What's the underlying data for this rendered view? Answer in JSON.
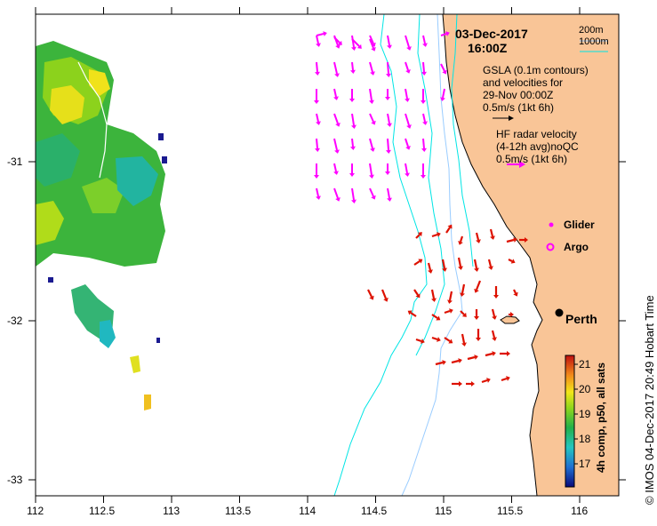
{
  "header": {
    "date": "03-Dec-2017",
    "time": "16:00Z"
  },
  "legend": {
    "depth_200": "200m",
    "depth_1000": "1000m",
    "gsla_line1": "GSLA (0.1m contours)",
    "gsla_line2": "and velocities for",
    "gsla_line3": "29-Nov 00:00Z",
    "gsla_scale": "0.5m/s (1kt 6h)",
    "hf_line1": "HF radar velocity",
    "hf_line2": "(4-12h avg)noQC",
    "hf_scale": "0.5m/s (1kt 6h)",
    "glider": "Glider",
    "argo": "Argo"
  },
  "city": "Perth",
  "axes": {
    "x_ticks": [
      "112",
      "112.5",
      "113",
      "113.5",
      "114",
      "114.5",
      "115",
      "115.5",
      "116"
    ],
    "y_ticks": [
      "-31",
      "-32",
      "-33"
    ]
  },
  "colorbar": {
    "ticks": [
      "21",
      "20",
      "19",
      "18",
      "17"
    ],
    "label": "4h comp, p50, all sats"
  },
  "credit": "© IMOS 04-Dec-2017 20:49 Hobart Time",
  "colors": {
    "land": "#f9c597",
    "contour_200": "#99ccff",
    "contour_1000": "#00e5e5",
    "gsla_arrow": "#ff00ff",
    "hf_arrow": "#dd1100",
    "glider_marker": "#ff00ff",
    "argo_marker": "#ff00ff"
  }
}
